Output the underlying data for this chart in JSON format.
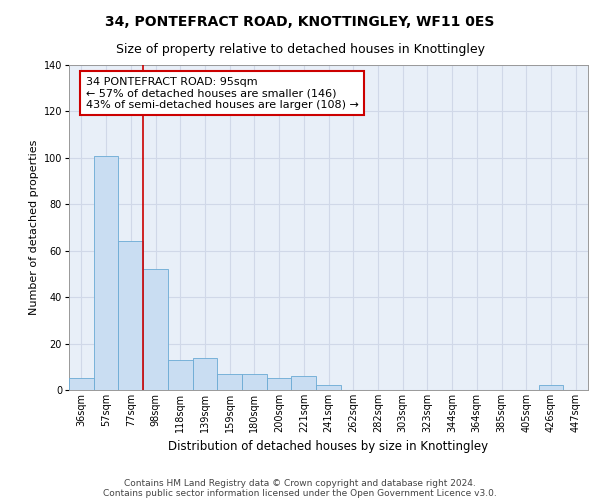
{
  "title": "34, PONTEFRACT ROAD, KNOTTINGLEY, WF11 0ES",
  "subtitle": "Size of property relative to detached houses in Knottingley",
  "xlabel": "Distribution of detached houses by size in Knottingley",
  "ylabel": "Number of detached properties",
  "bar_labels": [
    "36sqm",
    "57sqm",
    "77sqm",
    "98sqm",
    "118sqm",
    "139sqm",
    "159sqm",
    "180sqm",
    "200sqm",
    "221sqm",
    "241sqm",
    "262sqm",
    "282sqm",
    "303sqm",
    "323sqm",
    "344sqm",
    "364sqm",
    "385sqm",
    "405sqm",
    "426sqm",
    "447sqm"
  ],
  "bar_values": [
    5,
    101,
    64,
    52,
    13,
    14,
    7,
    7,
    5,
    6,
    2,
    0,
    0,
    0,
    0,
    0,
    0,
    0,
    0,
    2,
    0
  ],
  "bar_color": "#c9ddf2",
  "bar_edge_color": "#6aaad4",
  "property_line_x": 2.5,
  "property_line_color": "#cc0000",
  "annotation_line1": "34 PONTEFRACT ROAD: 95sqm",
  "annotation_line2": "← 57% of detached houses are smaller (146)",
  "annotation_line3": "43% of semi-detached houses are larger (108) →",
  "annotation_box_color": "#ffffff",
  "annotation_box_edge": "#cc0000",
  "ylim": [
    0,
    140
  ],
  "yticks": [
    0,
    20,
    40,
    60,
    80,
    100,
    120,
    140
  ],
  "grid_color": "#d0d8e8",
  "background_color": "#e8eff8",
  "footer_line1": "Contains HM Land Registry data © Crown copyright and database right 2024.",
  "footer_line2": "Contains public sector information licensed under the Open Government Licence v3.0.",
  "title_fontsize": 10,
  "subtitle_fontsize": 9,
  "ylabel_fontsize": 8,
  "xlabel_fontsize": 8.5,
  "tick_fontsize": 7,
  "annotation_fontsize": 8,
  "footer_fontsize": 6.5
}
